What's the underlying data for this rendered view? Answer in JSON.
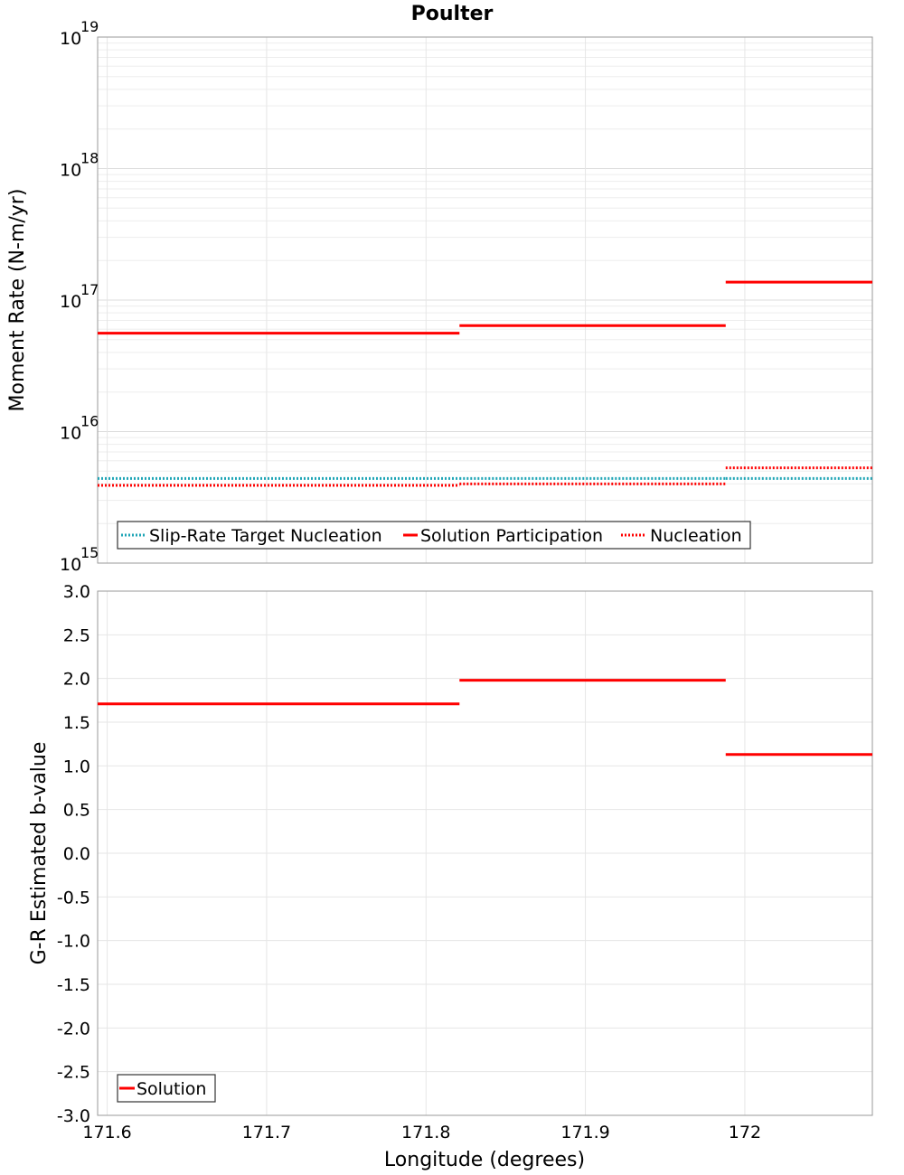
{
  "chart_data": [
    {
      "type": "line",
      "panel": "top",
      "title": "Poulter",
      "ylabel": "Moment Rate (N-m/yr)",
      "yscale": "log",
      "ylim": [
        1000000000000000.0,
        1e+19
      ],
      "xlim": [
        171.594,
        172.08
      ],
      "y_ticks": [
        {
          "base": "10",
          "exp": "15",
          "value": 1000000000000000.0
        },
        {
          "base": "10",
          "exp": "16",
          "value": 1e+16
        },
        {
          "base": "10",
          "exp": "17",
          "value": 1e+17
        },
        {
          "base": "10",
          "exp": "18",
          "value": 1e+18
        },
        {
          "base": "10",
          "exp": "19",
          "value": 1e+19
        }
      ],
      "series": [
        {
          "name": "Slip-Rate Target Nucleation",
          "style": "dotted",
          "color": "#1fa5b6",
          "segments": [
            {
              "x0": 171.594,
              "x1": 171.821,
              "y": 4400000000000000.0
            },
            {
              "x0": 171.821,
              "x1": 171.988,
              "y": 4400000000000000.0
            },
            {
              "x0": 171.988,
              "x1": 172.08,
              "y": 4400000000000000.0
            }
          ]
        },
        {
          "name": "Solution Participation",
          "style": "solid",
          "color": "#ff0000",
          "segments": [
            {
              "x0": 171.594,
              "x1": 171.821,
              "y": 5.6e+16
            },
            {
              "x0": 171.821,
              "x1": 171.988,
              "y": 6.4e+16
            },
            {
              "x0": 171.988,
              "x1": 172.08,
              "y": 1.37e+17
            }
          ]
        },
        {
          "name": "Nucleation",
          "style": "dotted",
          "color": "#ff0000",
          "segments": [
            {
              "x0": 171.594,
              "x1": 171.821,
              "y": 3900000000000000.0
            },
            {
              "x0": 171.821,
              "x1": 171.988,
              "y": 4000000000000000.0
            },
            {
              "x0": 171.988,
              "x1": 172.08,
              "y": 5300000000000000.0
            }
          ]
        }
      ],
      "legend": {
        "position": "bottom-left"
      }
    },
    {
      "type": "line",
      "panel": "bottom",
      "ylabel": "G-R Estimated b-value",
      "xlabel": "Longitude (degrees)",
      "ylim": [
        -3.0,
        3.0
      ],
      "xlim": [
        171.594,
        172.08
      ],
      "y_ticks": [
        "-3.0",
        "-2.5",
        "-2.0",
        "-1.5",
        "-1.0",
        "-0.5",
        "0.0",
        "0.5",
        "1.0",
        "1.5",
        "2.0",
        "2.5",
        "3.0"
      ],
      "x_ticks": [
        {
          "label": "171.6",
          "value": 171.6
        },
        {
          "label": "171.7",
          "value": 171.7
        },
        {
          "label": "171.8",
          "value": 171.8
        },
        {
          "label": "171.9",
          "value": 171.9
        },
        {
          "label": "172",
          "value": 172.0
        }
      ],
      "series": [
        {
          "name": "Solution",
          "style": "solid",
          "color": "#ff0000",
          "segments": [
            {
              "x0": 171.594,
              "x1": 171.821,
              "y": 1.71
            },
            {
              "x0": 171.821,
              "x1": 171.988,
              "y": 1.98
            },
            {
              "x0": 171.988,
              "x1": 172.08,
              "y": 1.13
            }
          ]
        }
      ],
      "legend": {
        "position": "bottom-left"
      }
    }
  ]
}
